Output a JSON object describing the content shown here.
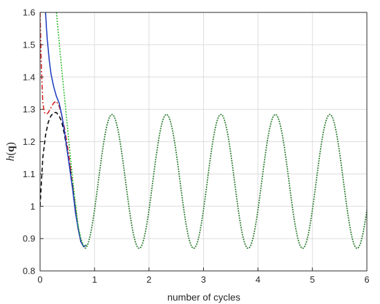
{
  "chart_data": {
    "type": "line",
    "xlabel": "number of cycles",
    "ylabel": {
      "italic": "h",
      "open": "(",
      "bold": "q",
      "close": ")"
    },
    "xlim": [
      0,
      6
    ],
    "ylim": [
      0.8,
      1.6
    ],
    "xticks": [
      "0",
      "1",
      "2",
      "3",
      "4",
      "5",
      "6"
    ],
    "yticks": [
      "0.8",
      "0.9",
      "1",
      "1.1",
      "1.2",
      "1.3",
      "1.4",
      "1.5",
      "1.6"
    ],
    "grid": true,
    "legend": "none",
    "series": [
      {
        "color": "#000000",
        "style": "dashed",
        "x": [
          0,
          0.05,
          0.1,
          0.15,
          0.2,
          0.25,
          0.3,
          0.35,
          0.4,
          0.45,
          0.5,
          0.55,
          0.6,
          0.65,
          0.7,
          0.75,
          0.8,
          0.85
        ],
        "y": [
          1.0,
          1.15,
          1.22,
          1.26,
          1.28,
          1.29,
          1.29,
          1.28,
          1.26,
          1.22,
          1.17,
          1.12,
          1.06,
          0.99,
          0.93,
          0.89,
          0.875,
          0.88
        ]
      },
      {
        "color": "#d62020",
        "style": "dashdot",
        "x": [
          0,
          0.02,
          0.05,
          0.08,
          0.12,
          0.15,
          0.2,
          0.25,
          0.3,
          0.35,
          0.4,
          0.45,
          0.5,
          0.55,
          0.6,
          0.65,
          0.7,
          0.75,
          0.8,
          0.85
        ],
        "y": [
          1.6,
          1.45,
          1.32,
          1.29,
          1.285,
          1.29,
          1.305,
          1.32,
          1.325,
          1.31,
          1.28,
          1.24,
          1.19,
          1.13,
          1.06,
          0.99,
          0.93,
          0.89,
          0.875,
          0.88
        ]
      },
      {
        "color": "#1f3fbf",
        "style": "solid",
        "x": [
          0.1,
          0.13,
          0.17,
          0.2,
          0.25,
          0.3,
          0.35,
          0.4,
          0.45,
          0.5,
          0.55,
          0.6,
          0.65,
          0.7,
          0.75,
          0.8,
          0.85
        ],
        "y": [
          1.6,
          1.52,
          1.45,
          1.41,
          1.37,
          1.34,
          1.32,
          1.28,
          1.23,
          1.17,
          1.11,
          1.05,
          0.98,
          0.93,
          0.89,
          0.875,
          0.88
        ]
      },
      {
        "color": "#22bb22",
        "style": "dotted",
        "x": [
          0.3,
          0.4,
          0.5,
          0.6,
          0.7,
          0.75,
          0.8,
          0.85
        ],
        "y": [
          1.6,
          1.42,
          1.25,
          1.08,
          0.94,
          0.9,
          0.878,
          0.88
        ]
      },
      {
        "color": "#2e7d32",
        "style": "periodic",
        "x_start": 0.82,
        "x_end": 6,
        "offset": 1.077,
        "amplitude": 0.207,
        "period": 1.0,
        "peak_x": 0.32
      }
    ]
  }
}
